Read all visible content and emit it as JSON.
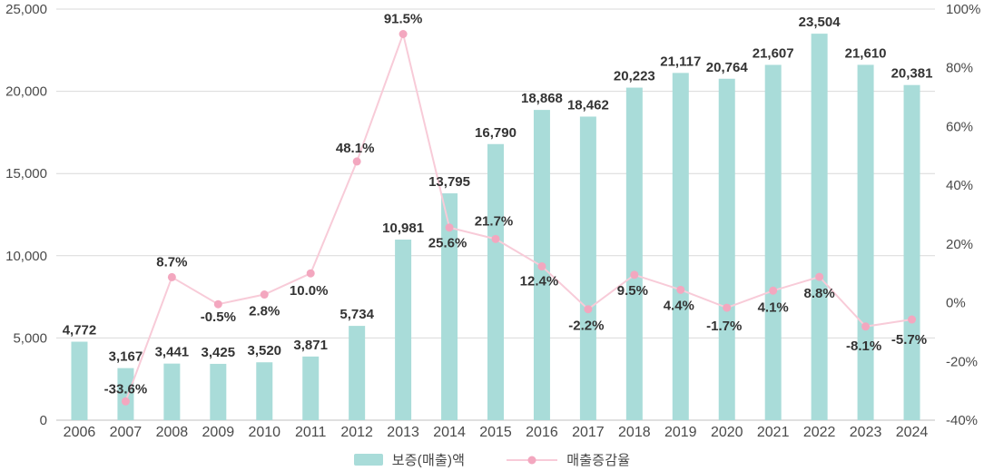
{
  "chart_data": {
    "type": "bar",
    "subtype": "combo-bar-line",
    "title": "",
    "categories": [
      "2006",
      "2007",
      "2008",
      "2009",
      "2010",
      "2011",
      "2012",
      "2013",
      "2014",
      "2015",
      "2016",
      "2017",
      "2018",
      "2019",
      "2020",
      "2021",
      "2022",
      "2023",
      "2024"
    ],
    "series": [
      {
        "name": "보증(매출)액",
        "type": "bar",
        "axis": "left",
        "values": [
          4772,
          3167,
          3441,
          3425,
          3520,
          3871,
          5734,
          10981,
          13795,
          16790,
          18868,
          18462,
          20223,
          21117,
          20764,
          21607,
          23504,
          21610,
          20381
        ],
        "value_labels": [
          "4,772",
          "3,167",
          "3,441",
          "3,425",
          "3,520",
          "3,871",
          "5,734",
          "10,981",
          "13,795",
          "16,790",
          "18,868",
          "18,462",
          "20,223",
          "21,117",
          "20,764",
          "21,607",
          "23,504",
          "21,610",
          "20,381"
        ]
      },
      {
        "name": "매출증감율",
        "type": "line",
        "axis": "right",
        "values": [
          null,
          -33.6,
          8.7,
          -0.5,
          2.8,
          10.0,
          48.1,
          91.5,
          25.6,
          21.7,
          12.4,
          -2.2,
          9.5,
          4.4,
          -1.7,
          4.1,
          8.8,
          -8.1,
          -5.7
        ],
        "value_labels": [
          "",
          "-33.6%",
          "8.7%",
          "-0.5%",
          "2.8%",
          "10.0%",
          "48.1%",
          "91.5%",
          "25.6%",
          "21.7%",
          "12.4%",
          "-2.2%",
          "9.5%",
          "4.4%",
          "-1.7%",
          "4.1%",
          "8.8%",
          "-8.1%",
          "-5.7%"
        ]
      }
    ],
    "left_axis": {
      "min": 0,
      "max": 25000,
      "step": 5000,
      "tick_labels": [
        "25,000",
        "20,000",
        "15,000",
        "10,000",
        "5,000",
        "0"
      ]
    },
    "right_axis": {
      "min": -40,
      "max": 100,
      "step": 20,
      "tick_labels": [
        "100%",
        "80%",
        "60%",
        "40%",
        "20%",
        "0%",
        "-20%",
        "-40%"
      ]
    },
    "grid": "horizontal",
    "legend_position": "bottom",
    "colors": {
      "bar": "#a9dcd9",
      "line": "#f8cbd8",
      "marker": "#f3a7bf",
      "data_label": "#333333",
      "tick_label": "#4a4a4a",
      "grid_line": "#d9d9d9",
      "axis_line": "#c2c2c2",
      "background": "#ffffff"
    }
  }
}
